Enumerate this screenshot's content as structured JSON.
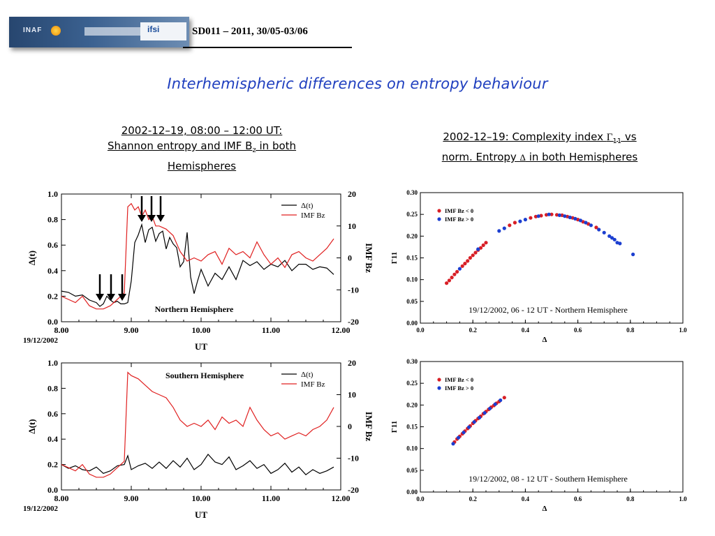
{
  "header": {
    "logo_left": "INAF",
    "logo_right": "ifsi",
    "code": "SD011 – 2011, 30/05-03/06"
  },
  "title": "Interhemispheric differences on entropy behaviour",
  "left_subtitle": {
    "line1": "2002-12–19, 08:00 – 12:00 UT:",
    "line2_pre": "Shannon entropy and IMF B",
    "line2_sub": "z",
    "line2_post": " in both",
    "line3": "Hemispheres"
  },
  "right_subtitle": {
    "line1_pre": "2002-12–19: Complexity index ",
    "line1_sym": "Γ",
    "line1_sub": "11",
    "line1_post": " vs",
    "line2_pre": "norm. Entropy ",
    "line2_sym": "Δ",
    "line2_post": " in both Hemispheres"
  },
  "colors": {
    "title_blue": "#1f3fbf",
    "red_series": "#e02020",
    "black_series": "#000000",
    "scatter_red": "#d81f26",
    "scatter_blue": "#1c3fd0"
  },
  "chart_data": [
    {
      "type": "line",
      "title": "Northern Hemisphere",
      "xlabel": "UT",
      "xlabel_extra": "19/12/2002",
      "ylabel": "Δ(t)",
      "y2label": "IMF Bz",
      "xlim": [
        8.0,
        12.0
      ],
      "ylim": [
        0.0,
        1.0
      ],
      "y2lim": [
        -20,
        20
      ],
      "xticks": [
        "8.00",
        "9.00",
        "10.00",
        "11.00",
        "12.00"
      ],
      "yticks": [
        "0.0",
        "0.2",
        "0.4",
        "0.6",
        "0.8",
        "1.0"
      ],
      "y2ticks": [
        "-20",
        "-10",
        "0",
        "10",
        "20"
      ],
      "legend": [
        "Δ(t)",
        "IMF Bz"
      ],
      "legend_position": "top-right",
      "annotation": "arrows at about 8.55, 8.7, 8.85, 9.15, 9.3, 9.42 UT",
      "series": [
        {
          "name": "Δ(t)",
          "axis": "left",
          "x": [
            8.0,
            8.1,
            8.2,
            8.3,
            8.4,
            8.5,
            8.55,
            8.6,
            8.65,
            8.7,
            8.75,
            8.8,
            8.85,
            8.9,
            8.95,
            9.0,
            9.05,
            9.1,
            9.15,
            9.2,
            9.25,
            9.3,
            9.35,
            9.4,
            9.45,
            9.5,
            9.55,
            9.6,
            9.65,
            9.7,
            9.75,
            9.8,
            9.85,
            9.9,
            9.95,
            10.0,
            10.1,
            10.2,
            10.3,
            10.4,
            10.5,
            10.6,
            10.7,
            10.8,
            10.9,
            11.0,
            11.1,
            11.2,
            11.3,
            11.4,
            11.5,
            11.6,
            11.7,
            11.8,
            11.9
          ],
          "y": [
            0.24,
            0.23,
            0.2,
            0.21,
            0.17,
            0.15,
            0.12,
            0.14,
            0.2,
            0.17,
            0.15,
            0.16,
            0.14,
            0.14,
            0.15,
            0.32,
            0.62,
            0.68,
            0.76,
            0.62,
            0.72,
            0.74,
            0.63,
            0.69,
            0.71,
            0.57,
            0.66,
            0.61,
            0.58,
            0.43,
            0.47,
            0.7,
            0.35,
            0.22,
            0.32,
            0.41,
            0.28,
            0.38,
            0.33,
            0.43,
            0.33,
            0.48,
            0.44,
            0.47,
            0.41,
            0.45,
            0.43,
            0.48,
            0.4,
            0.45,
            0.45,
            0.41,
            0.43,
            0.42,
            0.37
          ]
        },
        {
          "name": "IMF Bz",
          "axis": "right",
          "x": [
            8.0,
            8.1,
            8.2,
            8.3,
            8.4,
            8.5,
            8.6,
            8.7,
            8.8,
            8.85,
            8.9,
            8.95,
            9.0,
            9.05,
            9.1,
            9.15,
            9.2,
            9.25,
            9.3,
            9.35,
            9.4,
            9.5,
            9.6,
            9.7,
            9.8,
            9.9,
            10.0,
            10.1,
            10.2,
            10.3,
            10.4,
            10.5,
            10.6,
            10.7,
            10.8,
            10.9,
            11.0,
            11.1,
            11.2,
            11.3,
            11.4,
            11.5,
            11.6,
            11.7,
            11.8,
            11.9
          ],
          "y": [
            -12,
            -13,
            -14,
            -12,
            -15,
            -16,
            -16,
            -15,
            -13,
            -12,
            -11,
            16,
            17,
            15,
            16,
            13,
            15,
            12,
            13,
            10,
            10,
            9,
            7,
            2,
            -1,
            0,
            -1,
            1,
            2,
            -2,
            3,
            1,
            2,
            0,
            5,
            1,
            -2,
            0,
            -3,
            1,
            2,
            0,
            -1,
            1,
            3,
            6
          ]
        }
      ]
    },
    {
      "type": "scatter",
      "title": "19/12/2002, 06 - 12 UT - Northern Hemisphere",
      "xlabel": "Δ",
      "ylabel": "Γ11",
      "xlim": [
        0.0,
        1.0
      ],
      "ylim": [
        0.0,
        0.3
      ],
      "xticks": [
        "0.0",
        "0.2",
        "0.4",
        "0.6",
        "0.8",
        "1.0"
      ],
      "yticks": [
        "0.00",
        "0.05",
        "0.10",
        "0.15",
        "0.20",
        "0.25",
        "0.30"
      ],
      "legend": [
        "IMF Bz < 0",
        "IMF Bz > 0"
      ],
      "legend_position": "top-left",
      "series": [
        {
          "name": "IMF Bz < 0",
          "x": [
            0.1,
            0.11,
            0.12,
            0.13,
            0.14,
            0.16,
            0.17,
            0.18,
            0.19,
            0.2,
            0.21,
            0.22,
            0.23,
            0.24,
            0.25,
            0.34,
            0.36,
            0.42,
            0.44,
            0.46,
            0.48,
            0.5,
            0.52,
            0.54,
            0.56,
            0.58,
            0.6,
            0.62,
            0.64,
            0.67
          ],
          "y": [
            0.092,
            0.098,
            0.105,
            0.112,
            0.118,
            0.131,
            0.137,
            0.143,
            0.15,
            0.156,
            0.162,
            0.168,
            0.173,
            0.179,
            0.185,
            0.225,
            0.231,
            0.242,
            0.245,
            0.247,
            0.249,
            0.25,
            0.249,
            0.248,
            0.245,
            0.242,
            0.238,
            0.233,
            0.228,
            0.22
          ]
        },
        {
          "name": "IMF Bz > 0",
          "x": [
            0.15,
            0.22,
            0.3,
            0.32,
            0.38,
            0.4,
            0.45,
            0.49,
            0.53,
            0.55,
            0.57,
            0.59,
            0.61,
            0.63,
            0.65,
            0.68,
            0.7,
            0.72,
            0.73,
            0.74,
            0.75,
            0.76,
            0.81
          ],
          "y": [
            0.125,
            0.17,
            0.212,
            0.218,
            0.234,
            0.238,
            0.246,
            0.25,
            0.248,
            0.246,
            0.243,
            0.24,
            0.236,
            0.231,
            0.225,
            0.215,
            0.208,
            0.2,
            0.196,
            0.192,
            0.185,
            0.183,
            0.158
          ]
        }
      ]
    },
    {
      "type": "line",
      "title": "Southern Hemisphere",
      "xlabel": "UT",
      "xlabel_extra": "19/12/2002",
      "ylabel": "Δ(t)",
      "y2label": "IMF Bz",
      "xlim": [
        8.0,
        12.0
      ],
      "ylim": [
        0.0,
        1.0
      ],
      "y2lim": [
        -20,
        20
      ],
      "xticks": [
        "8.00",
        "9.00",
        "10.00",
        "11.00",
        "12.00"
      ],
      "yticks": [
        "0.0",
        "0.2",
        "0.4",
        "0.6",
        "0.8",
        "1.0"
      ],
      "y2ticks": [
        "-20",
        "-10",
        "0",
        "10",
        "20"
      ],
      "legend": [
        "Δ(t)",
        "IMF Bz"
      ],
      "legend_position": "top-right",
      "series": [
        {
          "name": "Δ(t)",
          "axis": "left",
          "x": [
            8.0,
            8.1,
            8.2,
            8.3,
            8.4,
            8.5,
            8.6,
            8.7,
            8.8,
            8.9,
            8.95,
            9.0,
            9.1,
            9.2,
            9.3,
            9.4,
            9.5,
            9.6,
            9.7,
            9.8,
            9.9,
            10.0,
            10.1,
            10.2,
            10.3,
            10.4,
            10.5,
            10.6,
            10.7,
            10.8,
            10.9,
            11.0,
            11.1,
            11.2,
            11.3,
            11.4,
            11.5,
            11.6,
            11.7,
            11.8,
            11.9
          ],
          "y": [
            0.2,
            0.17,
            0.19,
            0.16,
            0.15,
            0.18,
            0.13,
            0.15,
            0.19,
            0.2,
            0.27,
            0.16,
            0.19,
            0.21,
            0.17,
            0.22,
            0.17,
            0.23,
            0.18,
            0.25,
            0.16,
            0.2,
            0.28,
            0.22,
            0.2,
            0.26,
            0.16,
            0.19,
            0.23,
            0.17,
            0.2,
            0.13,
            0.16,
            0.21,
            0.14,
            0.18,
            0.12,
            0.16,
            0.13,
            0.15,
            0.18
          ]
        },
        {
          "name": "IMF Bz",
          "axis": "right",
          "x": [
            8.0,
            8.1,
            8.2,
            8.3,
            8.4,
            8.5,
            8.6,
            8.7,
            8.8,
            8.85,
            8.9,
            8.95,
            9.0,
            9.1,
            9.2,
            9.3,
            9.4,
            9.5,
            9.6,
            9.7,
            9.8,
            9.9,
            10.0,
            10.1,
            10.2,
            10.3,
            10.4,
            10.5,
            10.6,
            10.7,
            10.8,
            10.9,
            11.0,
            11.1,
            11.2,
            11.3,
            11.4,
            11.5,
            11.6,
            11.7,
            11.8,
            11.9
          ],
          "y": [
            -12,
            -13,
            -14,
            -12,
            -15,
            -16,
            -16,
            -15,
            -13,
            -12,
            -11,
            17,
            16,
            15,
            13,
            11,
            10,
            9,
            6,
            2,
            0,
            1,
            0,
            2,
            -1,
            3,
            1,
            2,
            0,
            6,
            2,
            -1,
            -3,
            -2,
            -4,
            -3,
            -2,
            -3,
            -1,
            0,
            2,
            6
          ]
        }
      ]
    },
    {
      "type": "scatter",
      "title": "19/12/2002, 08 - 12 UT - Southern Hemisphere",
      "xlabel": "Δ",
      "ylabel": "Γ11",
      "xlim": [
        0.0,
        1.0
      ],
      "ylim": [
        0.0,
        0.3
      ],
      "xticks": [
        "0.0",
        "0.2",
        "0.4",
        "0.6",
        "0.8",
        "1.0"
      ],
      "yticks": [
        "0.00",
        "0.05",
        "0.10",
        "0.15",
        "0.20",
        "0.25",
        "0.30"
      ],
      "legend": [
        "IMF Bz < 0",
        "IMF Bz > 0"
      ],
      "legend_position": "top-left",
      "series": [
        {
          "name": "IMF Bz < 0",
          "x": [
            0.13,
            0.14,
            0.15,
            0.16,
            0.17,
            0.18,
            0.19,
            0.2,
            0.21,
            0.22,
            0.23,
            0.24,
            0.25,
            0.26,
            0.27,
            0.28,
            0.29,
            0.3,
            0.32
          ],
          "y": [
            0.115,
            0.122,
            0.128,
            0.134,
            0.14,
            0.146,
            0.152,
            0.158,
            0.164,
            0.169,
            0.174,
            0.18,
            0.185,
            0.19,
            0.195,
            0.199,
            0.204,
            0.208,
            0.217
          ]
        },
        {
          "name": "IMF Bz > 0",
          "x": [
            0.125,
            0.145,
            0.165,
            0.185,
            0.205,
            0.225,
            0.245,
            0.265,
            0.285,
            0.305
          ],
          "y": [
            0.111,
            0.125,
            0.137,
            0.149,
            0.161,
            0.171,
            0.182,
            0.192,
            0.202,
            0.211
          ]
        }
      ]
    }
  ]
}
